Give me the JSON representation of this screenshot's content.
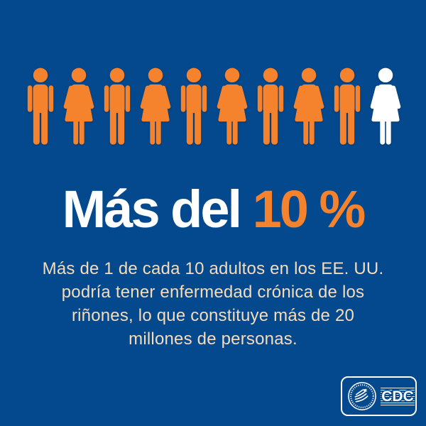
{
  "colors": {
    "background": "#04498d",
    "orange": "#f5822d",
    "white": "#ffffff",
    "body_text": "#f6dcba"
  },
  "pictograph": {
    "colors": {
      "orange": "#f5822d",
      "white": "#ffffff"
    },
    "figures": [
      {
        "type": "male",
        "color": "orange"
      },
      {
        "type": "female",
        "color": "orange"
      },
      {
        "type": "male",
        "color": "orange"
      },
      {
        "type": "female",
        "color": "orange"
      },
      {
        "type": "male",
        "color": "orange"
      },
      {
        "type": "female",
        "color": "orange"
      },
      {
        "type": "male",
        "color": "orange"
      },
      {
        "type": "female",
        "color": "orange"
      },
      {
        "type": "male",
        "color": "orange"
      },
      {
        "type": "female",
        "color": "white"
      }
    ]
  },
  "headline": {
    "prefix": "Más del ",
    "value": "10 %"
  },
  "body": {
    "lines": [
      "Más de 1 de cada 10 adultos en los EE. UU.",
      "podría tener enfermedad crónica de los",
      "riñones, lo que constituye más de 20",
      "millones de personas."
    ]
  },
  "logo": {
    "wordmark": "CDC"
  },
  "chart_data": {
    "type": "pictograph",
    "title": "Más del 10 %",
    "caption": "Más de 1 de cada 10 adultos en los EE. UU. podría tener enfermedad crónica de los riñones, lo que constituye más de 20 millones de personas.",
    "total_figures": 10,
    "series": [
      {
        "name": "adultos (figuras naranjas)",
        "count": 9,
        "color": "#f5822d"
      },
      {
        "name": "1 de cada 10 adultos con posible enfermedad crónica de los riñones (figura blanca)",
        "count": 1,
        "color": "#ffffff"
      }
    ],
    "statistic_percent": 10,
    "unit": "adultos",
    "population_estimate": "más de 20 millones de personas",
    "legend_position": "none",
    "grid": false
  }
}
